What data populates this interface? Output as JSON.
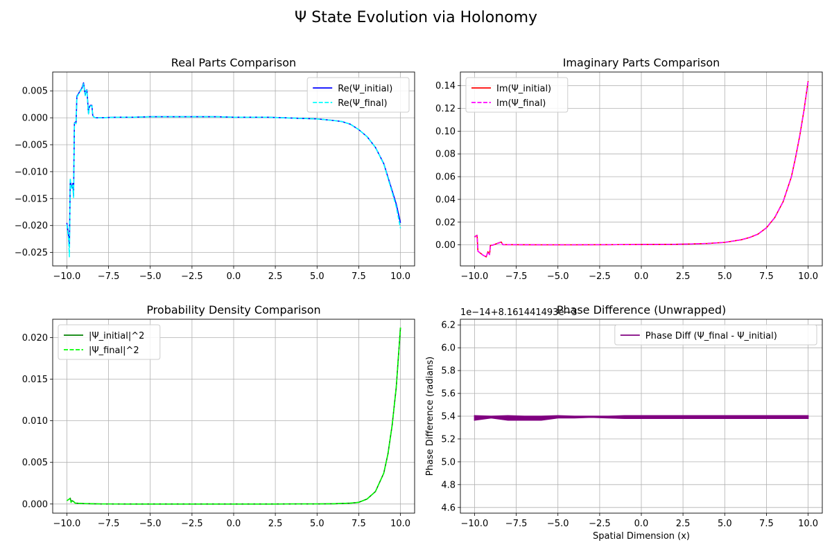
{
  "figure": {
    "title": "Ψ State Evolution via Holonomy"
  },
  "chart_data": [
    {
      "type": "line",
      "title": "Real Parts Comparison",
      "xlabel": "",
      "ylabel": "",
      "xlim": [
        -10.85,
        10.85
      ],
      "ylim": [
        -0.0275,
        0.0085
      ],
      "xticks": [
        -10,
        -7.5,
        -5,
        -2.5,
        0,
        2.5,
        5,
        7.5,
        10
      ],
      "xtick_labels": [
        "−10.0",
        "−7.5",
        "−5.0",
        "−2.5",
        "0.0",
        "2.5",
        "5.0",
        "7.5",
        "10.0"
      ],
      "yticks": [
        -0.025,
        -0.02,
        -0.015,
        -0.01,
        -0.005,
        0,
        0.005
      ],
      "ytick_labels": [
        "−0.025",
        "−0.020",
        "−0.015",
        "−0.010",
        "−0.005",
        "0.000",
        "0.005"
      ],
      "grid": true,
      "legend": "upper right",
      "series": [
        {
          "name": "Re(Ψ_initial)",
          "color": "#0000ff",
          "dash": "solid",
          "x": [
            -10.0,
            -9.9,
            -9.85,
            -9.8,
            -9.75,
            -9.7,
            -9.65,
            -9.6,
            -9.55,
            -9.5,
            -9.45,
            -9.4,
            -9.3,
            -9.2,
            -9.1,
            -9.0,
            -8.9,
            -8.85,
            -8.8,
            -8.7,
            -8.65,
            -8.6,
            -8.5,
            -8.45,
            -8.4,
            -8.3,
            -8.0,
            -7.0,
            -6.0,
            -5.0,
            -4.0,
            -3.0,
            -2.0,
            -1.0,
            0.0,
            1.0,
            2.0,
            3.0,
            4.0,
            5.0,
            6.0,
            6.5,
            7.0,
            7.5,
            8.0,
            8.5,
            9.0,
            9.25,
            9.5,
            9.75,
            10.0
          ],
          "y": [
            -0.0195,
            -0.022,
            -0.024,
            -0.0115,
            -0.0125,
            -0.013,
            -0.0122,
            -0.0145,
            -0.001,
            -0.0008,
            -0.001,
            0.004,
            0.0045,
            0.005,
            0.0055,
            0.0065,
            0.0042,
            0.005,
            0.0052,
            0.0008,
            0.002,
            0.0023,
            0.0023,
            0.0005,
            0.0002,
            0.0,
            0.0,
            0.0001,
            0.0001,
            0.0002,
            0.0002,
            0.0002,
            0.0002,
            0.0002,
            0.0001,
            0.0001,
            0.0001,
            0.0,
            -0.0001,
            -0.0002,
            -0.0005,
            -0.0007,
            -0.0012,
            -0.0022,
            -0.0035,
            -0.0055,
            -0.0085,
            -0.011,
            -0.0135,
            -0.016,
            -0.0195
          ]
        },
        {
          "name": "Re(Ψ_final)",
          "color": "#00ffff",
          "dash": "dashed",
          "x": [
            -10.0,
            -9.9,
            -9.85,
            -9.8,
            -9.75,
            -9.7,
            -9.65,
            -9.6,
            -9.55,
            -9.5,
            -9.45,
            -9.4,
            -9.3,
            -9.2,
            -9.1,
            -9.0,
            -8.9,
            -8.85,
            -8.8,
            -8.7,
            -8.65,
            -8.6,
            -8.5,
            -8.45,
            -8.4,
            -8.3,
            -8.0,
            -7.0,
            -6.0,
            -5.0,
            -4.0,
            -3.0,
            -2.0,
            -1.0,
            0.0,
            1.0,
            2.0,
            3.0,
            4.0,
            5.0,
            6.0,
            6.5,
            7.0,
            7.5,
            8.0,
            8.5,
            9.0,
            9.25,
            9.5,
            9.75,
            10.0
          ],
          "y": [
            -0.0198,
            -0.0225,
            -0.0258,
            -0.0112,
            -0.0128,
            -0.0132,
            -0.0125,
            -0.0148,
            -0.0011,
            -0.0009,
            -0.0011,
            0.0038,
            0.0044,
            0.0049,
            0.0054,
            0.0063,
            0.0041,
            0.0049,
            0.0051,
            0.0007,
            0.0019,
            0.0022,
            0.0022,
            0.0005,
            0.0002,
            0.0,
            0.0,
            0.0001,
            0.0001,
            0.0002,
            0.0002,
            0.0002,
            0.0002,
            0.0002,
            0.0001,
            0.0001,
            0.0001,
            0.0,
            -0.0001,
            -0.0002,
            -0.0005,
            -0.0007,
            -0.0012,
            -0.0022,
            -0.0035,
            -0.0055,
            -0.0086,
            -0.0112,
            -0.0138,
            -0.0165,
            -0.0205
          ]
        }
      ]
    },
    {
      "type": "line",
      "title": "Imaginary Parts Comparison",
      "xlabel": "",
      "ylabel": "",
      "xlim": [
        -10.85,
        10.85
      ],
      "ylim": [
        -0.0185,
        0.152
      ],
      "xticks": [
        -10,
        -7.5,
        -5,
        -2.5,
        0,
        2.5,
        5,
        7.5,
        10
      ],
      "xtick_labels": [
        "−10.0",
        "−7.5",
        "−5.0",
        "−2.5",
        "0.0",
        "2.5",
        "5.0",
        "7.5",
        "10.0"
      ],
      "yticks": [
        0,
        0.02,
        0.04,
        0.06,
        0.08,
        0.1,
        0.12,
        0.14
      ],
      "ytick_labels": [
        "0.00",
        "0.02",
        "0.04",
        "0.06",
        "0.08",
        "0.10",
        "0.12",
        "0.14"
      ],
      "grid": true,
      "legend": "upper left",
      "series": [
        {
          "name": "Im(Ψ_initial)",
          "color": "#ff0000",
          "dash": "solid",
          "x": [
            -10.0,
            -9.85,
            -9.8,
            -9.5,
            -9.3,
            -9.2,
            -9.1,
            -9.05,
            -8.9,
            -8.5,
            -8.4,
            -8.3,
            -8.0,
            -6.0,
            -4.0,
            -2.0,
            0.0,
            2.0,
            3.0,
            4.0,
            5.0,
            6.0,
            6.5,
            7.0,
            7.5,
            8.0,
            8.5,
            9.0,
            9.25,
            9.5,
            9.75,
            10.0
          ],
          "y": [
            0.007,
            0.0085,
            -0.0055,
            -0.009,
            -0.0105,
            -0.006,
            -0.0085,
            -0.0005,
            -0.0002,
            0.002,
            0.0025,
            0.0002,
            0.0002,
            0.0001,
            0.0001,
            0.0002,
            0.0003,
            0.0005,
            0.0008,
            0.0012,
            0.0022,
            0.0045,
            0.0065,
            0.0095,
            0.015,
            0.024,
            0.038,
            0.06,
            0.077,
            0.096,
            0.118,
            0.144
          ]
        },
        {
          "name": "Im(Ψ_final)",
          "color": "#ff00ff",
          "dash": "dashed",
          "x": [
            -10.0,
            -9.85,
            -9.8,
            -9.5,
            -9.3,
            -9.2,
            -9.1,
            -9.05,
            -8.9,
            -8.5,
            -8.4,
            -8.3,
            -8.0,
            -6.0,
            -4.0,
            -2.0,
            0.0,
            2.0,
            3.0,
            4.0,
            5.0,
            6.0,
            6.5,
            7.0,
            7.5,
            8.0,
            8.5,
            9.0,
            9.25,
            9.5,
            9.75,
            10.0
          ],
          "y": [
            0.0068,
            0.0083,
            -0.0055,
            -0.009,
            -0.0105,
            -0.0062,
            -0.0085,
            -0.0006,
            -0.0002,
            0.0019,
            0.0024,
            0.0002,
            0.0002,
            0.0001,
            0.0001,
            0.0002,
            0.0003,
            0.0005,
            0.0008,
            0.0012,
            0.0022,
            0.0045,
            0.0065,
            0.0095,
            0.015,
            0.024,
            0.038,
            0.06,
            0.077,
            0.096,
            0.118,
            0.144
          ]
        }
      ]
    },
    {
      "type": "line",
      "title": "Probability Density Comparison",
      "xlabel": "",
      "ylabel": "",
      "xlim": [
        -10.85,
        10.85
      ],
      "ylim": [
        -0.0011,
        0.0222
      ],
      "xticks": [
        -10,
        -7.5,
        -5,
        -2.5,
        0,
        2.5,
        5,
        7.5,
        10
      ],
      "xtick_labels": [
        "−10.0",
        "−7.5",
        "−5.0",
        "−2.5",
        "0.0",
        "2.5",
        "5.0",
        "7.5",
        "10.0"
      ],
      "yticks": [
        0,
        0.005,
        0.01,
        0.015,
        0.02
      ],
      "ytick_labels": [
        "0.000",
        "0.005",
        "0.010",
        "0.015",
        "0.020"
      ],
      "grid": true,
      "legend": "upper left",
      "series": [
        {
          "name": "|Ψ_initial|^2",
          "color": "#008000",
          "dash": "solid",
          "x": [
            -10.0,
            -9.85,
            -9.8,
            -9.75,
            -9.7,
            -9.6,
            -9.5,
            -9.0,
            -8.5,
            -8.0,
            -6.0,
            -4.0,
            -2.0,
            0.0,
            2.0,
            4.0,
            5.0,
            6.0,
            7.0,
            7.5,
            8.0,
            8.5,
            9.0,
            9.25,
            9.5,
            9.75,
            10.0
          ],
          "y": [
            0.0004,
            0.0006,
            0.0007,
            0.0002,
            0.0004,
            0.0003,
            0.0001,
            5e-05,
            3e-05,
            1e-05,
            0.0,
            0.0,
            0.0,
            0.0,
            0.0,
            1e-05,
            1e-05,
            3e-05,
            0.0001,
            0.0002,
            0.0006,
            0.0015,
            0.0037,
            0.006,
            0.0094,
            0.014,
            0.0212
          ]
        },
        {
          "name": "|Ψ_final|^2",
          "color": "#00ff00",
          "dash": "dashed",
          "x": [
            -10.0,
            -9.85,
            -9.8,
            -9.75,
            -9.7,
            -9.6,
            -9.5,
            -9.0,
            -8.5,
            -8.0,
            -6.0,
            -4.0,
            -2.0,
            0.0,
            2.0,
            4.0,
            5.0,
            6.0,
            7.0,
            7.5,
            8.0,
            8.5,
            9.0,
            9.25,
            9.5,
            9.75,
            10.0
          ],
          "y": [
            0.0004,
            0.0006,
            0.0007,
            0.0002,
            0.0004,
            0.0003,
            0.0001,
            5e-05,
            3e-05,
            1e-05,
            0.0,
            0.0,
            0.0,
            0.0,
            0.0,
            1e-05,
            1e-05,
            3e-05,
            0.0001,
            0.0002,
            0.0006,
            0.0015,
            0.0037,
            0.006,
            0.0094,
            0.014,
            0.0212
          ]
        }
      ]
    },
    {
      "type": "line",
      "title": "Phase Difference (Unwrapped)",
      "xlabel": "Spatial Dimension (x)",
      "ylabel": "Phase Difference (radians)",
      "offset_label": "1e−14+8.161441493e−3",
      "xlim": [
        -10.85,
        10.85
      ],
      "ylim": [
        4.55,
        6.25
      ],
      "xticks": [
        -10,
        -7.5,
        -5,
        -2.5,
        0,
        2.5,
        5,
        7.5,
        10
      ],
      "xtick_labels": [
        "−10.0",
        "−7.5",
        "−5.0",
        "−2.5",
        "0.0",
        "2.5",
        "5.0",
        "7.5",
        "10.0"
      ],
      "yticks": [
        4.6,
        4.8,
        5.0,
        5.2,
        5.4,
        5.6,
        5.8,
        6.0,
        6.2
      ],
      "ytick_labels": [
        "4.6",
        "4.8",
        "5.0",
        "5.2",
        "5.4",
        "5.6",
        "5.8",
        "6.0",
        "6.2"
      ],
      "grid": true,
      "legend": "upper right",
      "series": [
        {
          "name": "Phase Diff (Ψ_final - Ψ_initial)",
          "color": "#800080",
          "dash": "solid",
          "x": [
            -10.0,
            -9.0,
            -8.0,
            -7.0,
            -6.0,
            -5.0,
            -4.0,
            -3.0,
            -2.0,
            -1.0,
            0.0,
            1.0,
            2.0,
            3.0,
            4.0,
            5.0,
            6.0,
            7.0,
            8.0,
            9.0,
            10.0
          ],
          "y_min": [
            5.365,
            5.385,
            5.365,
            5.365,
            5.365,
            5.385,
            5.385,
            5.39,
            5.385,
            5.38,
            5.38,
            5.38,
            5.38,
            5.38,
            5.38,
            5.38,
            5.38,
            5.38,
            5.38,
            5.38,
            5.38
          ],
          "y_max": [
            5.405,
            5.4,
            5.405,
            5.4,
            5.4,
            5.405,
            5.4,
            5.4,
            5.4,
            5.405,
            5.405,
            5.405,
            5.405,
            5.405,
            5.405,
            5.405,
            5.405,
            5.405,
            5.405,
            5.405,
            5.405
          ]
        }
      ]
    }
  ]
}
